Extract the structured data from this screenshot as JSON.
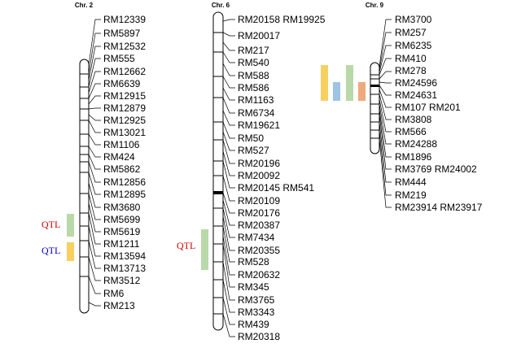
{
  "chromosomes": [
    {
      "title": "Chr. 2",
      "markers": [
        "RM12339",
        "RM5897",
        "RM12532",
        "RM555",
        "RM12662",
        "RM6639",
        "RM12915",
        "RM12879",
        "RM12925",
        "RM13021",
        "RM1106",
        "RM424",
        "RM5862",
        "RM12856",
        "RM12895",
        "RM3680",
        "RM5699",
        "RM5619",
        "RM1211",
        "RM13594",
        "RM13713",
        "RM3512",
        "RM6",
        "RM213"
      ],
      "qtls": [
        {
          "label": "QTL",
          "label_color": "#d00000",
          "bar_color": "#b9d9a9"
        },
        {
          "label": "QTL",
          "label_color": "#0000cc",
          "bar_color": "#f7d060"
        }
      ]
    },
    {
      "title": "Chr. 6",
      "markers": [
        "RM20158 RM19925",
        "RM20017",
        "RM217",
        "RM540",
        "RM588",
        "RM586",
        "RM1163",
        "RM6734",
        "RM19621",
        "RM50",
        "RM527",
        "RM20196",
        "RM20092",
        "RM20145 RM541",
        "RM20109",
        "RM20176",
        "RM20387",
        "RM7434",
        "RM20355",
        "RM528",
        "RM20632",
        "RM345",
        "RM3765",
        "RM3343",
        "RM439",
        "RM20318"
      ],
      "qtls": [
        {
          "label": "QTL",
          "label_color": "#d00000",
          "bar_color": "#b9d9a9"
        }
      ]
    },
    {
      "title": "Chr. 9",
      "markers": [
        "RM3700",
        "RM257",
        "RM6235",
        "RM410",
        "RM278",
        "RM24596",
        "RM24631",
        "RM107 RM201",
        "RM3808",
        "RM566",
        "RM24288",
        "RM1896",
        "RM3769 RM24002",
        "RM444",
        "RM219",
        "RM23914 RM23917"
      ],
      "qtls": [
        {
          "bar_color": "#f7d060"
        },
        {
          "bar_color": "#9ec3e6"
        },
        {
          "bar_color": "#b9d9a9"
        },
        {
          "bar_color": "#f0a97c"
        }
      ]
    }
  ]
}
